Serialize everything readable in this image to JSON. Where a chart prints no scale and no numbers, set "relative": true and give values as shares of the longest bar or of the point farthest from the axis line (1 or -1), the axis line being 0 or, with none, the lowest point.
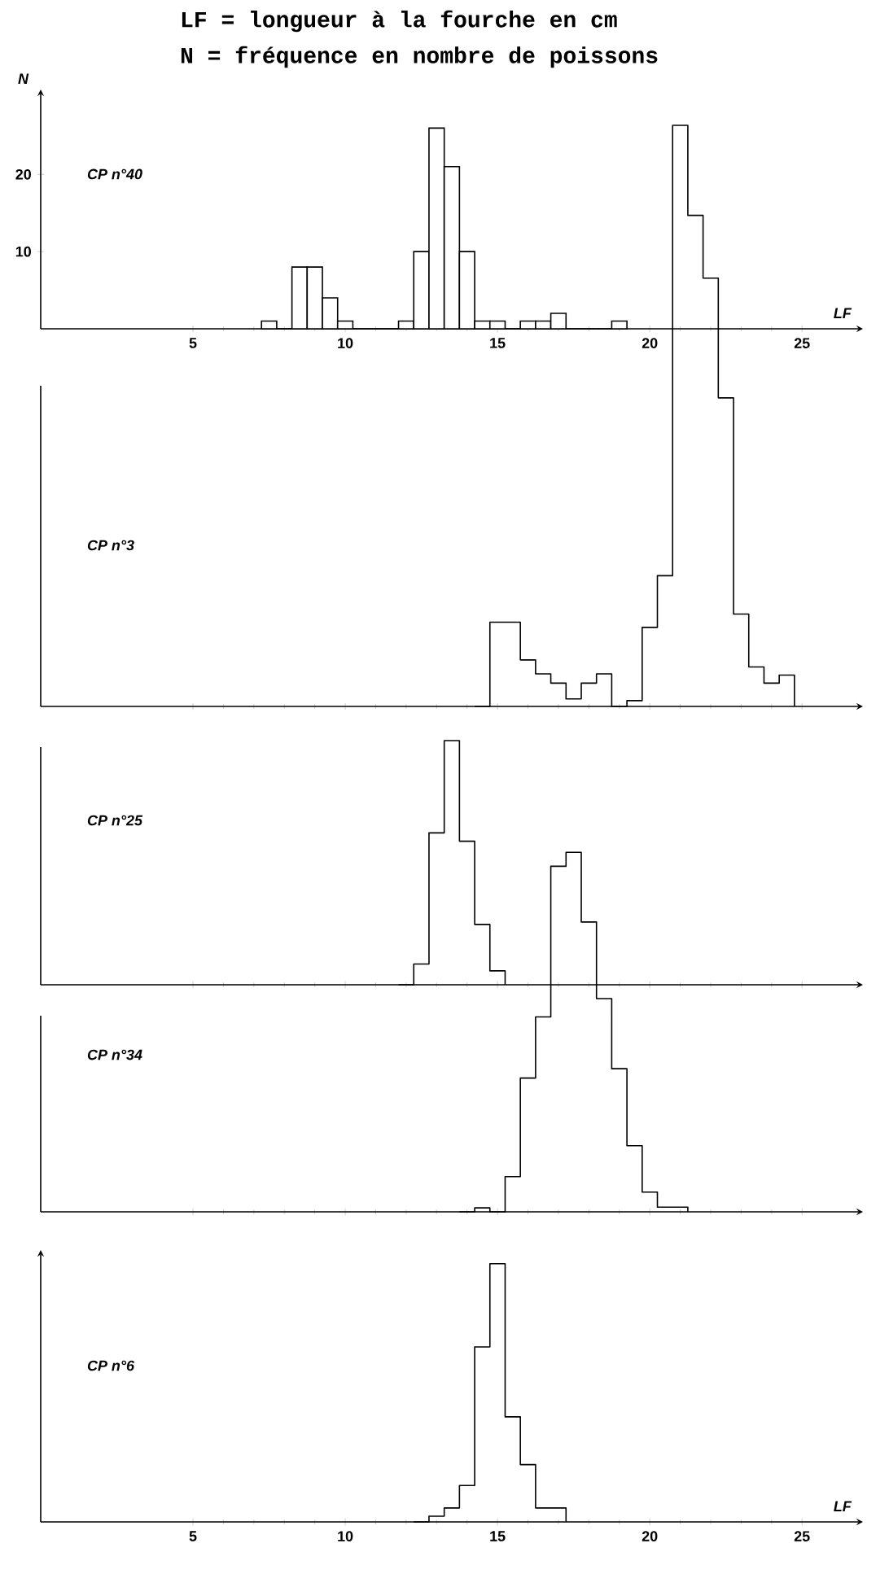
{
  "chart_data": [
    {
      "type": "histogram",
      "title": "LF = longueur à la fourche en cm",
      "subtitle": "N = fréquence en nombre de poissons",
      "xlabel": "LF",
      "ylabel": "N",
      "annotations": [
        "CP n°40"
      ],
      "color": "#000000",
      "bins": [
        7.25,
        7.75,
        8.25,
        8.75,
        9.25,
        9.75,
        10.25,
        10.75,
        11.25,
        11.75,
        12.25,
        12.75,
        13.25,
        13.75,
        14.25,
        14.75,
        15.25,
        15.75,
        16.25,
        16.75,
        17.25,
        17.75,
        18.25,
        18.75,
        19.25
      ],
      "values": [
        1,
        0,
        8,
        8,
        4,
        1,
        0,
        0,
        0,
        1,
        10,
        26,
        21,
        10,
        1,
        1,
        0,
        1,
        1,
        2,
        0,
        0,
        0,
        1
      ],
      "xlim": [
        0,
        27
      ],
      "xticks": [
        5,
        10,
        15,
        20,
        25
      ],
      "ylim": [
        0,
        31
      ],
      "yticks": [
        10,
        20
      ]
    },
    {
      "type": "step",
      "annotations": [
        "CP n°3"
      ],
      "color": "#000000",
      "relative": true,
      "tick_labels": false,
      "x": [
        14.25,
        14.75,
        15.25,
        15.75,
        16.25,
        16.75,
        17.25,
        17.75,
        18.25,
        18.75,
        19.25,
        19.75,
        20.25,
        20.75,
        21.25,
        21.75,
        22.25,
        22.75,
        23.25,
        23.75,
        24.25,
        24.75
      ],
      "values": [
        0,
        0.145,
        0.145,
        0.08,
        0.056,
        0.04,
        0.013,
        0.04,
        0.056,
        0,
        0.01,
        0.136,
        0.225,
        1,
        0.845,
        0.737,
        0.531,
        0.159,
        0.068,
        0.04,
        0.054,
        0
      ],
      "xlim": [
        0,
        27
      ],
      "xticks": [
        5,
        10,
        15,
        20,
        25
      ]
    },
    {
      "type": "step",
      "annotations": [
        "CP n°25"
      ],
      "color": "#000000",
      "relative": true,
      "tick_labels": false,
      "x": [
        11.75,
        12.25,
        12.75,
        13.25,
        13.75,
        14.25,
        14.75,
        15.25
      ],
      "values": [
        0,
        0.085,
        0.622,
        1,
        0.588,
        0.247,
        0.057,
        0
      ],
      "xlim": [
        0,
        27
      ],
      "xticks": [
        5,
        10,
        15,
        20,
        25
      ]
    },
    {
      "type": "step",
      "annotations": [
        "CP n°34"
      ],
      "color": "#000000",
      "relative": true,
      "tick_labels": false,
      "x": [
        13.75,
        14.25,
        14.75,
        15.25,
        15.75,
        16.25,
        16.75,
        17.25,
        17.75,
        18.25,
        18.75,
        19.25,
        19.75,
        20.25,
        20.75,
        21.25
      ],
      "values": [
        0,
        0.011,
        0,
        0.098,
        0.372,
        0.542,
        0.961,
        1,
        0.806,
        0.593,
        0.398,
        0.184,
        0.055,
        0.013,
        0.013,
        0
      ],
      "xlim": [
        0,
        27
      ],
      "xticks": [
        5,
        10,
        15,
        20,
        25
      ]
    },
    {
      "type": "step",
      "xlabel": "LF",
      "annotations": [
        "CP n°6"
      ],
      "color": "#000000",
      "relative": true,
      "tick_labels": "x",
      "x": [
        12.25,
        12.75,
        13.25,
        13.75,
        14.25,
        14.75,
        15.25,
        15.75,
        16.25,
        16.75,
        17.25
      ],
      "values": [
        0,
        0.022,
        0.054,
        0.141,
        0.678,
        1,
        0.407,
        0.222,
        0.054,
        0.054,
        0
      ],
      "xlim": [
        0,
        27
      ],
      "xticks": [
        5,
        10,
        15,
        20,
        25
      ]
    }
  ]
}
